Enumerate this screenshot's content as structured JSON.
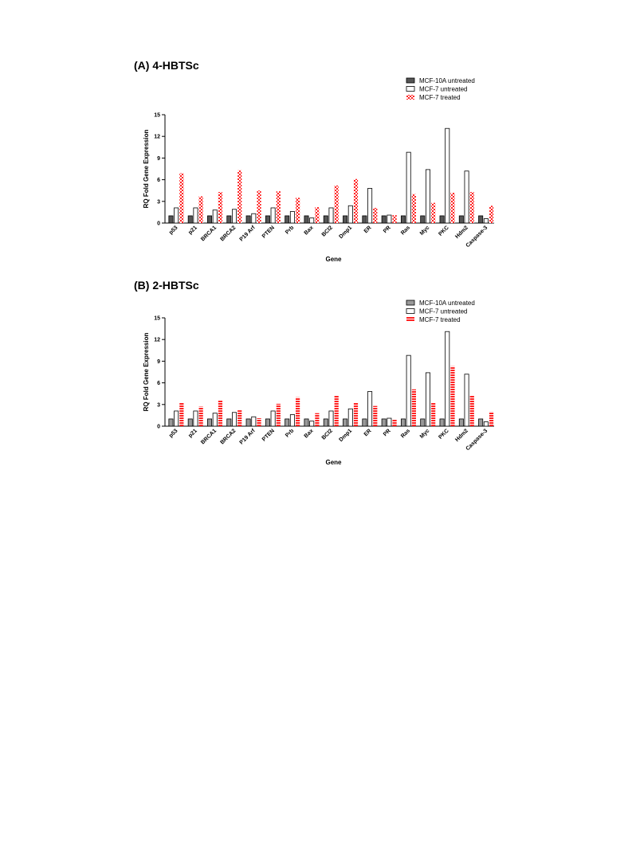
{
  "chart_data": [
    {
      "type": "bar",
      "title": "(A) 4-HBTSc",
      "xlabel": "Gene",
      "ylabel": "RQ Fold Gene Expression",
      "ylim": [
        0,
        15
      ],
      "yticks": [
        0,
        3,
        6,
        9,
        12,
        15
      ],
      "legend_position": "top-right",
      "categories": [
        "p53",
        "p21",
        "BRCA1",
        "BRCA2",
        "P19 Arf",
        "PTEN",
        "Prb",
        "Bax",
        "BCl2",
        "Dmp1",
        "ER",
        "PR",
        "Ras",
        "Myc",
        "PKC",
        "Hdm2",
        "Caspase-3"
      ],
      "series": [
        {
          "name": "MCF-10A untreated",
          "fill": "#555555",
          "pattern": "solid",
          "values": [
            1,
            1,
            1,
            1,
            1,
            1,
            1,
            1,
            1,
            1,
            1,
            1,
            1,
            1,
            1,
            1,
            1
          ]
        },
        {
          "name": "MCF-7 untreated",
          "fill": "#ffffff",
          "pattern": "hollow",
          "values": [
            2.1,
            2.1,
            1.8,
            1.9,
            1.3,
            2.1,
            1.6,
            0.7,
            2.1,
            2.4,
            4.8,
            1.1,
            9.8,
            7.4,
            13.1,
            7.2,
            0.6
          ]
        },
        {
          "name": "MCF-7 treated",
          "fill": "#ff2222",
          "pattern": "checker",
          "values": [
            6.9,
            3.7,
            4.3,
            7.3,
            4.5,
            4.4,
            3.5,
            2.2,
            5.2,
            6.1,
            2.1,
            1.1,
            4.0,
            2.8,
            4.2,
            4.3,
            2.4
          ]
        }
      ]
    },
    {
      "type": "bar",
      "title": "(B) 2-HBTSc",
      "xlabel": "Gene",
      "ylabel": "RQ Fold Gene Expression",
      "ylim": [
        0,
        15
      ],
      "yticks": [
        0,
        3,
        6,
        9,
        12,
        15
      ],
      "legend_position": "top-right",
      "categories": [
        "p53",
        "p21",
        "BRCA1",
        "BRCA2",
        "P19 Arf",
        "PTEN",
        "Prb",
        "Bax",
        "BCl2",
        "Dmp1",
        "ER",
        "PR",
        "Ras",
        "Myc",
        "PKC",
        "Hdm2",
        "Caspase-3"
      ],
      "series": [
        {
          "name": "MCF-10A untreated",
          "fill": "#999999",
          "pattern": "solid",
          "values": [
            1,
            1,
            1,
            1,
            1,
            1,
            1,
            1,
            1,
            1,
            1,
            1,
            1,
            1,
            1,
            1,
            1
          ]
        },
        {
          "name": "MCF-7 untreated",
          "fill": "#ffffff",
          "pattern": "hollow",
          "values": [
            2.1,
            2.1,
            1.8,
            1.9,
            1.3,
            2.1,
            1.6,
            0.7,
            2.1,
            2.4,
            4.8,
            1.1,
            9.8,
            7.4,
            13.1,
            7.2,
            0.6
          ]
        },
        {
          "name": "MCF-7 treated",
          "fill": "#ff2222",
          "pattern": "stripes",
          "values": [
            3.2,
            2.7,
            3.6,
            2.2,
            1.1,
            3.1,
            4.0,
            1.8,
            4.3,
            3.3,
            2.8,
            0.9,
            5.1,
            3.3,
            8.3,
            4.2,
            2.0
          ]
        }
      ]
    }
  ]
}
